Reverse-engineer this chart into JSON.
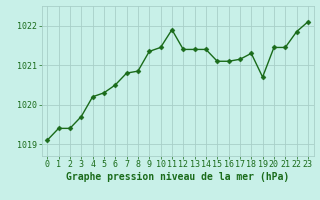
{
  "x": [
    0,
    1,
    2,
    3,
    4,
    5,
    6,
    7,
    8,
    9,
    10,
    11,
    12,
    13,
    14,
    15,
    16,
    17,
    18,
    19,
    20,
    21,
    22,
    23
  ],
  "y": [
    1019.1,
    1019.4,
    1019.4,
    1019.7,
    1020.2,
    1020.3,
    1020.5,
    1020.8,
    1020.85,
    1021.35,
    1021.45,
    1021.9,
    1021.4,
    1021.4,
    1021.4,
    1021.1,
    1021.1,
    1021.15,
    1021.3,
    1020.7,
    1021.45,
    1021.45,
    1021.85,
    1022.1
  ],
  "line_color": "#1a6b1a",
  "marker_color": "#1a6b1a",
  "bg_color": "#c8f0e8",
  "grid_color": "#a8cfc8",
  "xlabel": "Graphe pression niveau de la mer (hPa)",
  "xlabel_color": "#1a6b1a",
  "tick_color": "#1a6b1a",
  "ylim": [
    1018.7,
    1022.5
  ],
  "xlim": [
    -0.5,
    23.5
  ],
  "yticks": [
    1019,
    1020,
    1021,
    1022
  ],
  "xticks": [
    0,
    1,
    2,
    3,
    4,
    5,
    6,
    7,
    8,
    9,
    10,
    11,
    12,
    13,
    14,
    15,
    16,
    17,
    18,
    19,
    20,
    21,
    22,
    23
  ],
  "tick_fontsize": 6.0,
  "xlabel_fontsize": 7.0,
  "marker_size": 2.5,
  "line_width": 1.0
}
